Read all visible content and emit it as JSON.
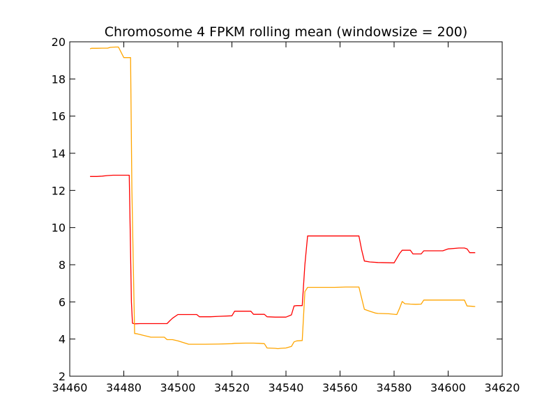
{
  "chart_data": {
    "type": "line",
    "title": "Chromosome 4 FPKM rolling mean (windowsize = 200)",
    "xlabel": "",
    "ylabel": "",
    "xlim": [
      34460,
      34620
    ],
    "ylim": [
      2,
      20
    ],
    "xticks": [
      34460,
      34480,
      34500,
      34520,
      34540,
      34560,
      34580,
      34600,
      34620
    ],
    "yticks": [
      2,
      4,
      6,
      8,
      10,
      12,
      14,
      16,
      18,
      20
    ],
    "grid": false,
    "legend": "none",
    "series": [
      {
        "color": "#ff0000",
        "x": [
          34467.5,
          34470,
          34472,
          34474,
          34476,
          34478,
          34480,
          34482,
          34482.8,
          34483.2,
          34484,
          34486,
          34490,
          34494,
          34496,
          34497,
          34498,
          34500,
          34504,
          34507,
          34508,
          34512,
          34515,
          34520,
          34521,
          34524,
          34527,
          34528,
          34531,
          34532,
          34533,
          34536,
          34540,
          34542,
          34543,
          34544,
          34546,
          34547,
          34548,
          34552,
          34560,
          34564,
          34567,
          34568,
          34569,
          34571,
          34574,
          34580,
          34581,
          34582,
          34583,
          34584,
          34586,
          34587,
          34590,
          34591,
          34596,
          34598,
          34600,
          34604,
          34606,
          34607,
          34608,
          34610
        ],
        "values": [
          12.75,
          12.75,
          12.77,
          12.8,
          12.82,
          12.82,
          12.82,
          12.82,
          6.0,
          4.85,
          4.82,
          4.83,
          4.83,
          4.83,
          4.83,
          4.98,
          5.12,
          5.32,
          5.32,
          5.32,
          5.2,
          5.2,
          5.22,
          5.25,
          5.5,
          5.5,
          5.5,
          5.33,
          5.33,
          5.33,
          5.2,
          5.18,
          5.18,
          5.3,
          5.78,
          5.8,
          5.8,
          8.0,
          9.55,
          9.55,
          9.55,
          9.55,
          9.55,
          8.8,
          8.2,
          8.15,
          8.12,
          8.1,
          8.35,
          8.6,
          8.78,
          8.78,
          8.78,
          8.58,
          8.58,
          8.75,
          8.75,
          8.75,
          8.85,
          8.9,
          8.9,
          8.85,
          8.65,
          8.65
        ]
      },
      {
        "color": "#ffa500",
        "x": [
          34467.5,
          34468,
          34470,
          34472,
          34474,
          34475,
          34477,
          34478,
          34480,
          34482.5,
          34483,
          34484,
          34485,
          34490,
          34494,
          34495,
          34496,
          34498,
          34500,
          34504,
          34510,
          34515,
          34520,
          34521,
          34525,
          34528,
          34530,
          34532,
          34533,
          34536,
          34537,
          34538,
          34540,
          34542,
          34543,
          34544,
          34546,
          34547,
          34548,
          34552,
          34558,
          34562,
          34567,
          34568,
          34569,
          34571,
          34573,
          34574,
          34578,
          34581,
          34582,
          34583,
          34584,
          34586,
          34588,
          34590,
          34591,
          34593,
          34598,
          34603,
          34606,
          34607,
          34609,
          34610
        ],
        "values": [
          19.62,
          19.65,
          19.65,
          19.66,
          19.66,
          19.7,
          19.72,
          19.72,
          19.15,
          19.15,
          12.0,
          4.3,
          4.28,
          4.1,
          4.1,
          4.1,
          3.97,
          3.97,
          3.9,
          3.72,
          3.72,
          3.73,
          3.75,
          3.77,
          3.78,
          3.78,
          3.77,
          3.75,
          3.52,
          3.5,
          3.48,
          3.5,
          3.52,
          3.6,
          3.85,
          3.9,
          3.92,
          6.55,
          6.78,
          6.78,
          6.78,
          6.8,
          6.8,
          6.2,
          5.6,
          5.5,
          5.4,
          5.38,
          5.36,
          5.32,
          5.65,
          6.02,
          5.9,
          5.88,
          5.87,
          5.88,
          6.1,
          6.1,
          6.1,
          6.1,
          6.1,
          5.78,
          5.76,
          5.75
        ]
      }
    ]
  }
}
